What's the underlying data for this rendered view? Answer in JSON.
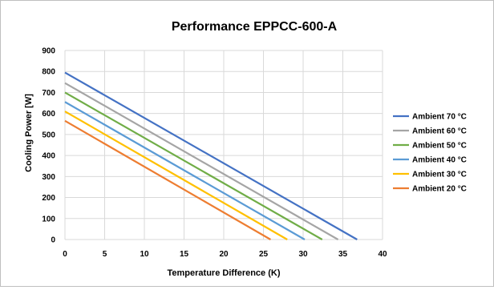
{
  "chart_data": {
    "type": "line",
    "title": "Performance EPPCC-600-A",
    "xlabel": "Temperature Difference (K)",
    "ylabel": "Cooling Power [W]",
    "xlim": [
      0,
      40
    ],
    "ylim": [
      0,
      900
    ],
    "x_ticks": [
      0,
      5,
      10,
      15,
      20,
      25,
      30,
      35,
      40
    ],
    "y_ticks": [
      0,
      100,
      200,
      300,
      400,
      500,
      600,
      700,
      800,
      900
    ],
    "grid": true,
    "legend_position": "right",
    "series": [
      {
        "name": "Ambient 70 °C",
        "color": "#4472c4",
        "points": [
          [
            0,
            795
          ],
          [
            36.8,
            0
          ]
        ]
      },
      {
        "name": "Ambient 60 °C",
        "color": "#a5a5a5",
        "points": [
          [
            0,
            745
          ],
          [
            34.4,
            0
          ]
        ]
      },
      {
        "name": "Ambient 50 °C",
        "color": "#70ad47",
        "points": [
          [
            0,
            700
          ],
          [
            32.4,
            0
          ]
        ]
      },
      {
        "name": "Ambient 40 °C",
        "color": "#5b9bd5",
        "points": [
          [
            0,
            655
          ],
          [
            30.2,
            0
          ]
        ]
      },
      {
        "name": "Ambient 30 °C",
        "color": "#ffc000",
        "points": [
          [
            0,
            610
          ],
          [
            28.0,
            0
          ]
        ]
      },
      {
        "name": "Ambient 20 °C",
        "color": "#ed7d31",
        "points": [
          [
            0,
            565
          ],
          [
            25.9,
            0
          ]
        ]
      }
    ]
  }
}
